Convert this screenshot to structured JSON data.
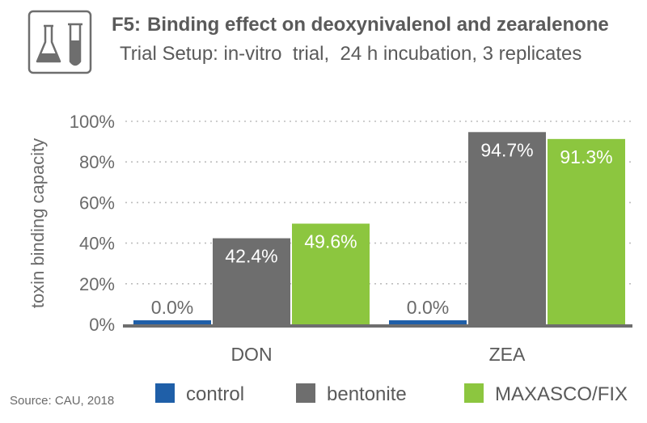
{
  "header": {
    "icon": "lab-flask-icon",
    "title_prefix": "F5:",
    "title": "Binding effect on deoxynivalenol and zearalenone",
    "subtitle": "Trial Setup: in-vitro  trial,  24 h incubation, 3 replicates"
  },
  "chart_data": {
    "type": "bar",
    "title": "F5: Binding effect on deoxynivalenol and zearalenone",
    "subtitle": "Trial Setup: in-vitro  trial,  24 h incubation, 3 replicates",
    "xlabel": "",
    "ylabel": "toxin binding capacity",
    "ylim": [
      0,
      100
    ],
    "yticks": [
      0,
      20,
      40,
      60,
      80,
      100
    ],
    "ytick_labels": [
      "0%",
      "20%",
      "40%",
      "60%",
      "80%",
      "100%"
    ],
    "grid": true,
    "categories": [
      "DON",
      "ZEA"
    ],
    "series": [
      {
        "name": "control",
        "color": "#1f5fa8",
        "values": [
          0.0,
          0.0
        ],
        "labels": [
          "0.0%",
          "0.0%"
        ]
      },
      {
        "name": "bentonite",
        "color": "#6e6e6e",
        "values": [
          42.4,
          94.7
        ],
        "labels": [
          "42.4%",
          "94.7%"
        ]
      },
      {
        "name": "MAXASCO/FIX",
        "color": "#8cc63f",
        "values": [
          49.6,
          91.3
        ],
        "labels": [
          "49.6%",
          "91.3%"
        ]
      }
    ],
    "legend_position": "bottom"
  },
  "source": "Source: CAU, 2018"
}
